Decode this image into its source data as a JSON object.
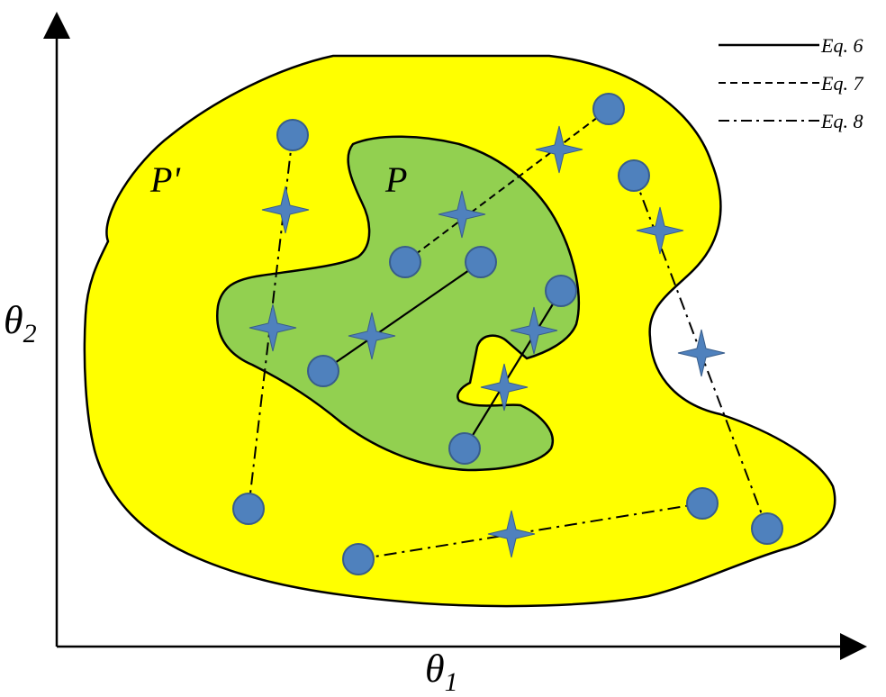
{
  "axes": {
    "x_label": "θ",
    "x_sub": "1",
    "y_label": "θ",
    "y_sub": "2"
  },
  "regions": {
    "outer_label": "P'",
    "inner_label": "P",
    "outer_color": "#ffff00",
    "inner_color": "#92d050"
  },
  "legend": {
    "items": [
      {
        "label": "Eq. 6",
        "style": "solid"
      },
      {
        "label": "Eq. 7",
        "style": "dashed"
      },
      {
        "label": "Eq. 8",
        "style": "dashdot"
      }
    ]
  },
  "markers": {
    "point_color": "#4f81bd",
    "point_stroke": "#385d8a",
    "star_color": "#4f81bd"
  },
  "connections": [
    {
      "style": "solid",
      "from": "p-inner-left",
      "to": "p-inner-top"
    },
    {
      "style": "solid",
      "from": "p-inner-bottom",
      "to": "p-inner-right"
    },
    {
      "style": "dashed",
      "from": "p-inner-mid",
      "to": "p-outer-topright"
    },
    {
      "style": "dashdot",
      "from": "p-outer-topleft",
      "to": "p-outer-bottomleft"
    },
    {
      "style": "dashdot",
      "from": "p-outer-right-upper",
      "to": "p-outer-right-lower"
    },
    {
      "style": "dashdot",
      "from": "p-outer-bottom",
      "to": "p-outer-bottomright"
    }
  ]
}
